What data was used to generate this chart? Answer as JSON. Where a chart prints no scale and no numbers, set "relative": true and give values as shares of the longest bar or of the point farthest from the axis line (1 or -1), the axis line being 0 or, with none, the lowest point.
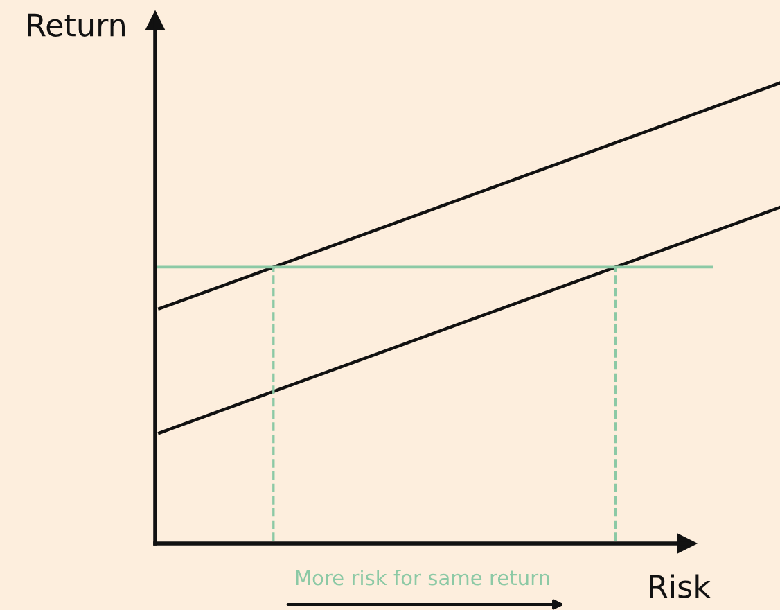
{
  "chart_data": {
    "type": "line",
    "relative": true,
    "xlabel": "Risk",
    "ylabel": "Return",
    "categories": [
      null,
      null
    ],
    "series": [
      {
        "color": "#111111",
        "values": [
          0.51,
          1
        ]
      },
      {
        "color": "#111111",
        "values": [
          0.24,
          0.73
        ]
      }
    ],
    "ref_lines": [
      {
        "axis": "y",
        "value": 0.6,
        "color": "#8cc9a5"
      }
    ],
    "annotations": [
      "More risk for same return"
    ],
    "marker": "none",
    "line_style": "solid"
  }
}
